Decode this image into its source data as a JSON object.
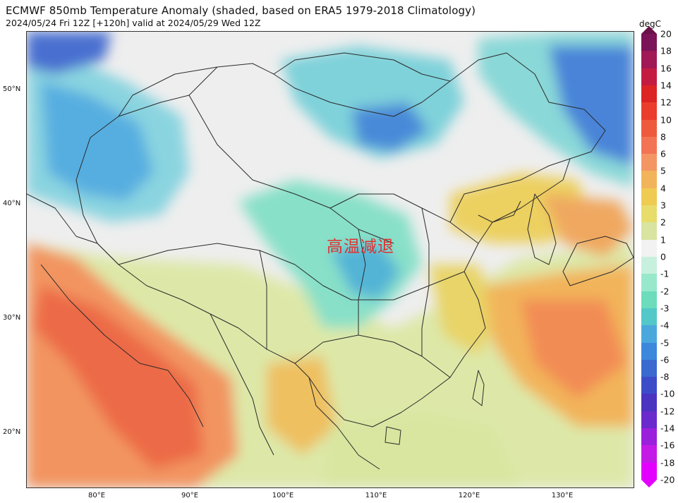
{
  "header": {
    "title": "ECMWF 850mb Temperature Anomaly (shaded, based on ERA5 1979-2018 Climatology)",
    "subtitle": "2024/05/24 Fri 12Z [+120h] valid at 2024/05/29 Wed 12Z"
  },
  "map": {
    "region": "China and surrounding Asia",
    "projection": "lat-lon",
    "lat_labels": [
      "50°N",
      "40°N",
      "30°N",
      "20°N"
    ],
    "lon_labels": [
      "80°E",
      "90°E",
      "100°E",
      "110°E",
      "120°E",
      "130°E"
    ],
    "annotation": "高温减退",
    "annotation_color": "#e03030"
  },
  "colorbar": {
    "unit": "degC",
    "labels": [
      "20",
      "18",
      "16",
      "14",
      "12",
      "10",
      "8",
      "6",
      "5",
      "4",
      "3",
      "2",
      "1",
      "0",
      "-1",
      "-2",
      "-3",
      "-4",
      "-5",
      "-6",
      "-8",
      "-10",
      "-12",
      "-14",
      "-16",
      "-18",
      "-20"
    ],
    "colors": [
      "#7a1358",
      "#a11856",
      "#c41c40",
      "#dc2424",
      "#ea3d2c",
      "#ee5a3c",
      "#f27454",
      "#f49564",
      "#f2b45a",
      "#efcb52",
      "#e8dc6b",
      "#d8e4a0",
      "#f2f2f2",
      "#c8f0de",
      "#98e8cc",
      "#6cdcbc",
      "#52c8c8",
      "#4aa8dc",
      "#3c88dc",
      "#3a6ad0",
      "#3c4cc8",
      "#4a34c0",
      "#6a2acc",
      "#9a20dc",
      "#c41ae6",
      "#e400ff"
    ],
    "top_arrow_color": "#6a1148",
    "bottom_arrow_color": "#e400ff"
  }
}
